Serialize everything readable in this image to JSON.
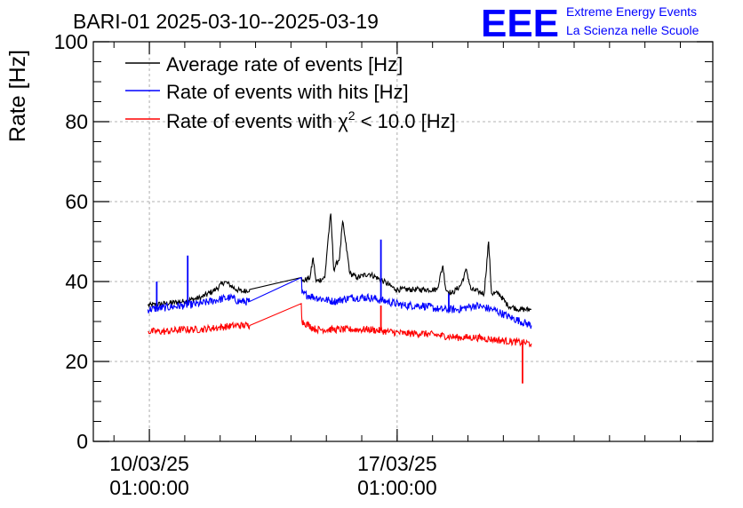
{
  "header": {
    "title": "BARI-01 2025-03-10--2025-03-19",
    "logo_text": "EEE",
    "logo_line1": "Extreme Energy Events",
    "logo_line2": "La Scienza nelle Scuole"
  },
  "colors": {
    "black": "#000000",
    "blue": "#0000ff",
    "red": "#ff0000",
    "logo": "#0000ff",
    "grid": "#9a9a9a"
  },
  "chart_data": {
    "type": "line",
    "title": "BARI-01 2025-03-10--2025-03-19",
    "xlabel": "",
    "ylabel": "Rate [Hz]",
    "xlim": [
      "2025-03-08T11:00:00",
      "2025-03-25T23:00:00"
    ],
    "ylim": [
      0,
      100
    ],
    "grid": true,
    "legend": "top-left",
    "yticks": [
      0,
      20,
      40,
      60,
      80,
      100
    ],
    "xticks": [
      {
        "value": "2025-03-10T01:00:00",
        "line1": "10/03/25",
        "line2": "01:00:00"
      },
      {
        "value": "2025-03-17T01:00:00",
        "line1": "17/03/25",
        "line2": "01:00:00"
      }
    ],
    "legend_entries": [
      {
        "series": "average",
        "prefix": "Average rate of events [Hz]",
        "chi_exp": "",
        "suffix": ""
      },
      {
        "series": "hits",
        "prefix": "Rate of events with hits [Hz]",
        "chi_exp": "",
        "suffix": ""
      },
      {
        "series": "chi2",
        "prefix": "Rate of events with ",
        "chi": "χ",
        "chi_exp": "2",
        "suffix": " < 10.0 [Hz]"
      }
    ],
    "series": [
      {
        "key": "average",
        "name": "Average rate of events [Hz]",
        "color": "#000000",
        "noise": 0.7,
        "points": [
          [
            "2025-03-10T00:00:00",
            34
          ],
          [
            "2025-03-10T12:00:00",
            34.5
          ],
          [
            "2025-03-11T00:00:00",
            35
          ],
          [
            "2025-03-11T12:00:00",
            36
          ],
          [
            "2025-03-11T22:00:00",
            38
          ],
          [
            "2025-03-12T04:00:00",
            40
          ],
          [
            "2025-03-12T08:00:00",
            39
          ],
          [
            "2025-03-12T12:00:00",
            38
          ],
          [
            "2025-03-12T16:00:00",
            37.5
          ],
          [
            "2025-03-12T21:00:00",
            38
          ],
          [
            "2025-03-14T08:00:00",
            41
          ],
          [
            "2025-03-14T08:30:00",
            40
          ],
          [
            "2025-03-14T14:00:00",
            41
          ],
          [
            "2025-03-14T16:00:00",
            46
          ],
          [
            "2025-03-14T18:00:00",
            40
          ],
          [
            "2025-03-15T00:00:00",
            41
          ],
          [
            "2025-03-15T02:00:00",
            50
          ],
          [
            "2025-03-15T04:00:00",
            57
          ],
          [
            "2025-03-15T06:00:00",
            43
          ],
          [
            "2025-03-15T10:00:00",
            46
          ],
          [
            "2025-03-15T12:00:00",
            55
          ],
          [
            "2025-03-15T14:00:00",
            50
          ],
          [
            "2025-03-15T17:00:00",
            42
          ],
          [
            "2025-03-15T22:00:00",
            41
          ],
          [
            "2025-03-16T06:00:00",
            42
          ],
          [
            "2025-03-16T16:00:00",
            40
          ],
          [
            "2025-03-17T00:00:00",
            38
          ],
          [
            "2025-03-17T12:00:00",
            38
          ],
          [
            "2025-03-17T20:00:00",
            38
          ],
          [
            "2025-03-18T04:00:00",
            38
          ],
          [
            "2025-03-18T08:00:00",
            44
          ],
          [
            "2025-03-18T10:00:00",
            38
          ],
          [
            "2025-03-18T14:00:00",
            37
          ],
          [
            "2025-03-18T20:00:00",
            39
          ],
          [
            "2025-03-19T00:00:00",
            43
          ],
          [
            "2025-03-19T03:00:00",
            38
          ],
          [
            "2025-03-19T08:00:00",
            37.5
          ],
          [
            "2025-03-19T12:00:00",
            37
          ],
          [
            "2025-03-19T15:00:00",
            50
          ],
          [
            "2025-03-19T17:00:00",
            37
          ],
          [
            "2025-03-19T22:00:00",
            37
          ],
          [
            "2025-03-20T04:00:00",
            34
          ],
          [
            "2025-03-20T12:00:00",
            33
          ],
          [
            "2025-03-20T20:00:00",
            33
          ]
        ],
        "spikes": []
      },
      {
        "key": "hits",
        "name": "Rate of events with hits [Hz]",
        "color": "#0000ff",
        "noise": 1.0,
        "points": [
          [
            "2025-03-10T00:00:00",
            33
          ],
          [
            "2025-03-10T12:00:00",
            33.5
          ],
          [
            "2025-03-11T00:00:00",
            34
          ],
          [
            "2025-03-11T12:00:00",
            34.5
          ],
          [
            "2025-03-12T00:00:00",
            35.5
          ],
          [
            "2025-03-12T08:00:00",
            36
          ],
          [
            "2025-03-12T14:00:00",
            35
          ],
          [
            "2025-03-12T21:00:00",
            35
          ],
          [
            "2025-03-14T08:00:00",
            41
          ],
          [
            "2025-03-14T08:30:00",
            37
          ],
          [
            "2025-03-14T18:00:00",
            36
          ],
          [
            "2025-03-15T06:00:00",
            35
          ],
          [
            "2025-03-15T18:00:00",
            36
          ],
          [
            "2025-03-16T06:00:00",
            36
          ],
          [
            "2025-03-16T18:00:00",
            35
          ],
          [
            "2025-03-17T06:00:00",
            34
          ],
          [
            "2025-03-17T18:00:00",
            34
          ],
          [
            "2025-03-18T06:00:00",
            33
          ],
          [
            "2025-03-18T18:00:00",
            33
          ],
          [
            "2025-03-19T06:00:00",
            34
          ],
          [
            "2025-03-19T18:00:00",
            33
          ],
          [
            "2025-03-20T06:00:00",
            31
          ],
          [
            "2025-03-20T20:00:00",
            29
          ]
        ],
        "spikes": [
          [
            "2025-03-10T06:00:00",
            40
          ],
          [
            "2025-03-11T03:00:00",
            46.5
          ],
          [
            "2025-03-16T14:00:00",
            50.5
          ],
          [
            "2025-03-18T12:00:00",
            37
          ]
        ]
      },
      {
        "key": "chi2",
        "name": "Rate of events with χ2 < 10.0 [Hz]",
        "color": "#ff0000",
        "noise": 0.9,
        "points": [
          [
            "2025-03-10T00:00:00",
            27.5
          ],
          [
            "2025-03-10T12:00:00",
            27.5
          ],
          [
            "2025-03-11T00:00:00",
            28
          ],
          [
            "2025-03-11T12:00:00",
            28
          ],
          [
            "2025-03-12T00:00:00",
            28.5
          ],
          [
            "2025-03-12T12:00:00",
            29
          ],
          [
            "2025-03-12T21:00:00",
            29
          ],
          [
            "2025-03-14T08:00:00",
            34.5
          ],
          [
            "2025-03-14T08:30:00",
            30
          ],
          [
            "2025-03-14T18:00:00",
            28
          ],
          [
            "2025-03-15T06:00:00",
            28
          ],
          [
            "2025-03-15T18:00:00",
            28
          ],
          [
            "2025-03-16T06:00:00",
            28
          ],
          [
            "2025-03-16T18:00:00",
            27.5
          ],
          [
            "2025-03-17T06:00:00",
            27
          ],
          [
            "2025-03-17T18:00:00",
            27
          ],
          [
            "2025-03-18T06:00:00",
            26.5
          ],
          [
            "2025-03-18T18:00:00",
            26
          ],
          [
            "2025-03-19T06:00:00",
            26
          ],
          [
            "2025-03-19T18:00:00",
            25.5
          ],
          [
            "2025-03-20T06:00:00",
            25
          ],
          [
            "2025-03-20T20:00:00",
            24.5
          ]
        ],
        "spikes": [
          [
            "2025-03-16T14:00:00",
            34
          ],
          [
            "2025-03-20T14:00:00",
            14.5
          ]
        ]
      }
    ]
  }
}
